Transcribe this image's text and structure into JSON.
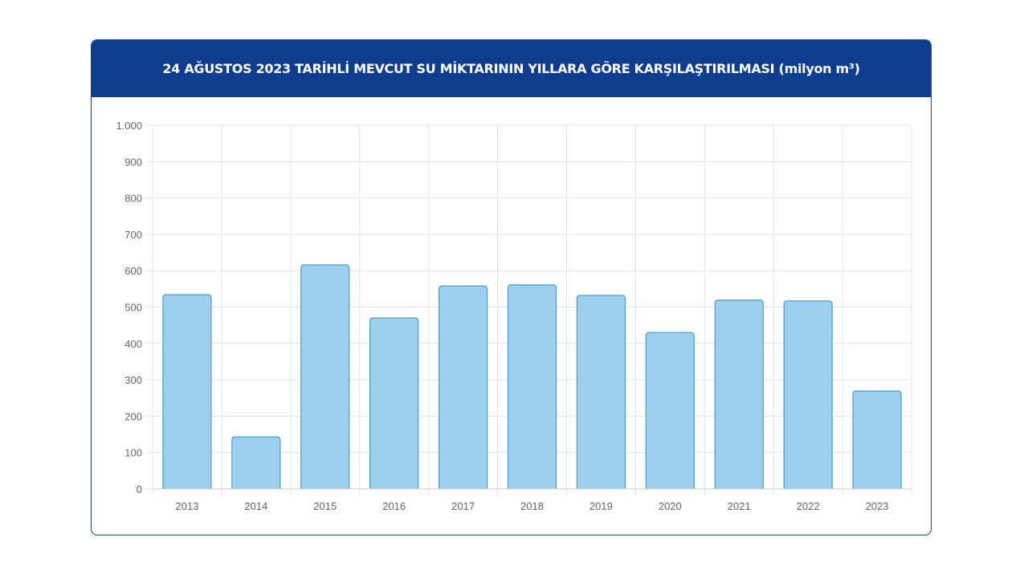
{
  "chart_data": {
    "type": "bar",
    "title": "24 AĞUSTOS 2023 TARİHLİ MEVCUT SU MİKTARININ YILLARA GÖRE KARŞILAŞTIRILMASI (milyon m³)",
    "categories": [
      "2013",
      "2014",
      "2015",
      "2016",
      "2017",
      "2018",
      "2019",
      "2020",
      "2021",
      "2022",
      "2023"
    ],
    "values": [
      534,
      143,
      616,
      470,
      558,
      561,
      532,
      430,
      519,
      517,
      269
    ],
    "xlabel": "",
    "ylabel": "",
    "ylim": [
      0,
      1000
    ],
    "yticks": [
      0,
      100,
      200,
      300,
      400,
      500,
      600,
      700,
      800,
      900,
      1000
    ],
    "ytick_labels": [
      "0",
      "100",
      "200",
      "300",
      "400",
      "500",
      "600",
      "700",
      "800",
      "900",
      "1.000"
    ],
    "grid": true,
    "colors": {
      "bar_fill": "#9dd0ee",
      "bar_stroke": "#4a9cc9",
      "header": "#0f3d8e"
    }
  }
}
